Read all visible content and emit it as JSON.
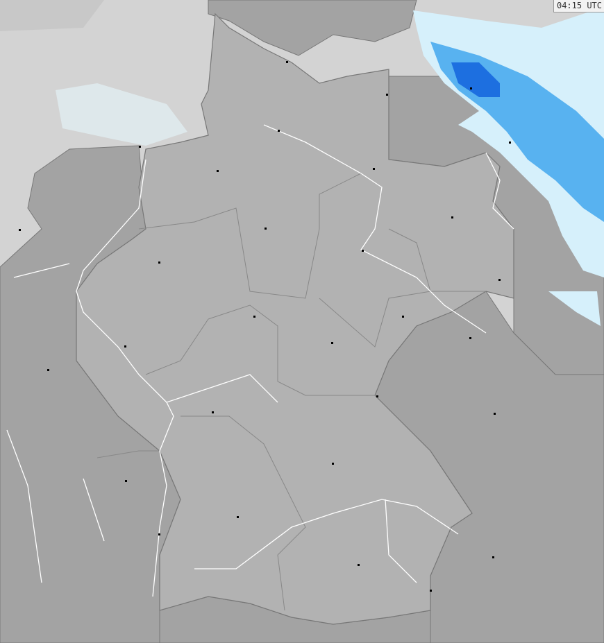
{
  "timestamp": "04:15 UTC",
  "colors": {
    "sea": "#d3d3d3",
    "germany": "#b2b2b2",
    "neighbors": "#a3a3a3",
    "borders": "#777777",
    "rivers": "#ffffff",
    "precip_light": "#d6f0fb",
    "precip_medium": "#58b2f0",
    "precip_heavy": "#1d6fe0"
  }
}
